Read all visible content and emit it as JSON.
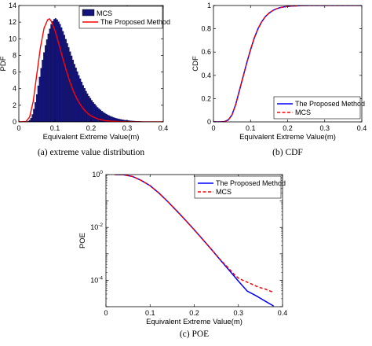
{
  "chart_data": [
    {
      "id": "a",
      "type": "bar",
      "caption": "(a) extreme value distribution",
      "xlabel": "Equivalent Extreme Value(m)",
      "ylabel": "PDF",
      "xlim": [
        0,
        0.4
      ],
      "ylim": [
        0,
        14
      ],
      "xticks": [
        "0",
        "0.1",
        "0.2",
        "0.3",
        "0.4"
      ],
      "yticks": [
        "0",
        "2",
        "4",
        "6",
        "8",
        "10",
        "12",
        "14"
      ],
      "legend_position": "top-right",
      "colors": {
        "histogram": "#141478",
        "curve": "#ff0000"
      },
      "series": [
        {
          "name": "MCS",
          "kind": "histogram"
        },
        {
          "name": "The Proposed Method",
          "kind": "line"
        }
      ],
      "histogram": {
        "bin_edges_start": 0.02,
        "bin_width": 0.004,
        "values": [
          0.02,
          0.07,
          0.2,
          0.46,
          0.9,
          1.55,
          2.35,
          3.3,
          4.35,
          5.4,
          6.45,
          7.45,
          8.35,
          9.2,
          9.9,
          10.6,
          11.2,
          11.75,
          12.1,
          12.35,
          12.45,
          12.3,
          12.05,
          11.75,
          11.35,
          10.9,
          10.45,
          9.95,
          9.45,
          8.95,
          8.45,
          7.95,
          7.45,
          6.95,
          6.5,
          6.05,
          5.6,
          5.2,
          4.8,
          4.4,
          4.05,
          3.7,
          3.4,
          3.1,
          2.85,
          2.6,
          2.35,
          2.15,
          1.95,
          1.75,
          1.6,
          1.45,
          1.3,
          1.17,
          1.05,
          0.95,
          0.85,
          0.76,
          0.68,
          0.61,
          0.54,
          0.48,
          0.43,
          0.38,
          0.34,
          0.3,
          0.27,
          0.24,
          0.21,
          0.19,
          0.17,
          0.15,
          0.13,
          0.11,
          0.1,
          0.09,
          0.08,
          0.07,
          0.06,
          0.05,
          0.04,
          0.04,
          0.03,
          0.03,
          0.02,
          0.02,
          0.02,
          0.01
        ]
      },
      "curve": {
        "x": [
          0,
          0.02,
          0.03,
          0.04,
          0.05,
          0.06,
          0.07,
          0.08,
          0.085,
          0.09,
          0.1,
          0.11,
          0.12,
          0.13,
          0.14,
          0.15,
          0.16,
          0.17,
          0.18,
          0.19,
          0.2,
          0.22,
          0.24,
          0.26,
          0.28,
          0.3,
          0.32,
          0.35,
          0.4
        ],
        "y": [
          0,
          0.05,
          0.6,
          2.5,
          5.8,
          9.0,
          11.3,
          12.3,
          12.4,
          12.1,
          11.0,
          9.5,
          7.9,
          6.4,
          5.0,
          3.8,
          2.85,
          2.1,
          1.5,
          1.05,
          0.72,
          0.33,
          0.15,
          0.07,
          0.03,
          0.015,
          0.007,
          0.002,
          0.0
        ]
      }
    },
    {
      "id": "b",
      "type": "line",
      "caption": "(b) CDF",
      "xlabel": "Equivalent Extreme Value(m)",
      "ylabel": "CDF",
      "xlim": [
        0,
        0.4
      ],
      "ylim": [
        0,
        1
      ],
      "xticks": [
        "0",
        "0.1",
        "0.2",
        "0.3",
        "0.4"
      ],
      "yticks": [
        "0",
        "0.2",
        "0.4",
        "0.6",
        "0.8",
        "1"
      ],
      "legend_position": "bottom-right",
      "series": [
        {
          "name": "The Proposed Method",
          "color": "#0000ff",
          "dash": "solid",
          "x": [
            0,
            0.02,
            0.03,
            0.04,
            0.05,
            0.06,
            0.07,
            0.08,
            0.09,
            0.1,
            0.11,
            0.12,
            0.13,
            0.14,
            0.15,
            0.16,
            0.17,
            0.18,
            0.19,
            0.2,
            0.21,
            0.22,
            0.24,
            0.26,
            0.28,
            0.3,
            0.35,
            0.4
          ],
          "y": [
            0,
            0.0,
            0.003,
            0.017,
            0.06,
            0.15,
            0.27,
            0.39,
            0.51,
            0.62,
            0.72,
            0.8,
            0.86,
            0.905,
            0.935,
            0.957,
            0.972,
            0.982,
            0.988,
            0.992,
            0.995,
            0.997,
            0.999,
            1.0,
            1.0,
            1.0,
            1.0,
            1.0
          ]
        },
        {
          "name": "MCS",
          "color": "#ff0000",
          "dash": "dashed",
          "x": [
            0,
            0.02,
            0.03,
            0.04,
            0.05,
            0.06,
            0.07,
            0.08,
            0.09,
            0.1,
            0.11,
            0.12,
            0.13,
            0.14,
            0.15,
            0.16,
            0.17,
            0.18,
            0.19,
            0.2,
            0.21,
            0.22,
            0.24,
            0.26,
            0.28,
            0.3,
            0.35,
            0.4
          ],
          "y": [
            0,
            0.0,
            0.003,
            0.017,
            0.06,
            0.15,
            0.27,
            0.39,
            0.51,
            0.62,
            0.72,
            0.8,
            0.86,
            0.905,
            0.935,
            0.957,
            0.972,
            0.982,
            0.988,
            0.992,
            0.995,
            0.997,
            0.999,
            1.0,
            1.0,
            1.0,
            1.0,
            1.0
          ]
        }
      ]
    },
    {
      "id": "c",
      "type": "line",
      "caption": "(c) POE",
      "xlabel": "Equivalent Extreme Value(m)",
      "ylabel": "POE",
      "xlim": [
        0,
        0.4
      ],
      "yscale": "log",
      "ylim": [
        1e-05,
        1
      ],
      "xticks": [
        "0",
        "0.1",
        "0.2",
        "0.3",
        "0.4"
      ],
      "yticks": [
        {
          "value": 1,
          "base": "10",
          "exp": "0"
        },
        {
          "value": 0.01,
          "base": "10",
          "exp": "-2"
        },
        {
          "value": 0.0001,
          "base": "10",
          "exp": "-4"
        }
      ],
      "legend_position": "top-right",
      "series": [
        {
          "name": "The Proposed Method",
          "color": "#0000ff",
          "dash": "solid",
          "x": [
            0.02,
            0.04,
            0.06,
            0.08,
            0.1,
            0.12,
            0.14,
            0.16,
            0.18,
            0.2,
            0.22,
            0.24,
            0.26,
            0.28,
            0.3,
            0.32,
            0.34,
            0.36,
            0.38
          ],
          "y": [
            1.0,
            0.98,
            0.85,
            0.6,
            0.38,
            0.2,
            0.095,
            0.043,
            0.019,
            0.0081,
            0.0034,
            0.0014,
            0.00056,
            0.00023,
            9.3e-05,
            3.9e-05,
            2.6e-05,
            1.65e-05,
            1.05e-05
          ]
        },
        {
          "name": "MCS",
          "color": "#ff0000",
          "dash": "dashed",
          "x": [
            0.02,
            0.04,
            0.06,
            0.08,
            0.1,
            0.12,
            0.14,
            0.16,
            0.18,
            0.2,
            0.22,
            0.24,
            0.26,
            0.28,
            0.29,
            0.3,
            0.31,
            0.32,
            0.33,
            0.34,
            0.35,
            0.36,
            0.37,
            0.38
          ],
          "y": [
            1.0,
            0.98,
            0.85,
            0.6,
            0.38,
            0.2,
            0.095,
            0.043,
            0.019,
            0.0081,
            0.0034,
            0.0014,
            0.00058,
            0.00026,
            0.00017,
            0.00012,
            0.0001,
            8.5e-05,
            7.2e-05,
            6e-05,
            5.2e-05,
            4.7e-05,
            4e-05,
            3.5e-05
          ]
        }
      ]
    }
  ]
}
